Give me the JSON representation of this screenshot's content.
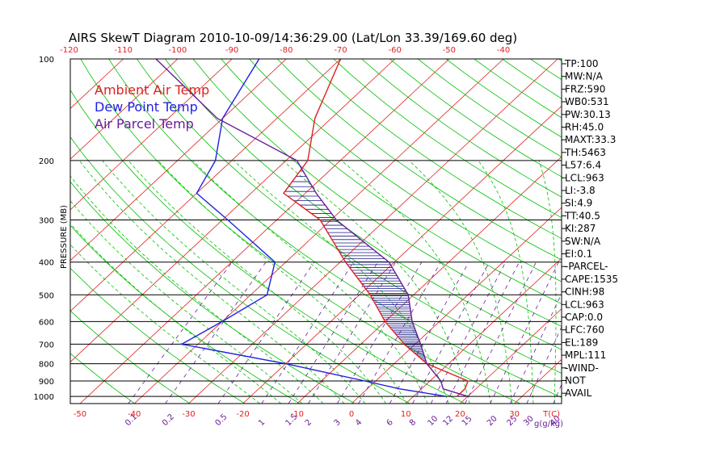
{
  "chart_data": {
    "type": "skewt",
    "title": "AIRS SkewT Diagram 2010-10-09/14:36:29.00 (Lat/Lon 33.39/169.60 deg)",
    "ylabel": "PRESSURE (MB)",
    "xlabel": "T(C)",
    "mixing_ratio_label": "g(g/kg)",
    "pressure_levels": [
      100,
      200,
      300,
      400,
      500,
      600,
      700,
      800,
      900,
      1000
    ],
    "pressure_range": [
      100,
      1050
    ],
    "top_temperature_ticks": [
      -120,
      -110,
      -100,
      -90,
      -80,
      -70,
      -60,
      -50,
      -40
    ],
    "bottom_temperature_ticks": [
      -50,
      -40,
      -30,
      -20,
      -10,
      0,
      10,
      20,
      30
    ],
    "mixing_ratio_labels": [
      "0.1",
      "0.2",
      "0.5",
      "1",
      "1.5",
      "2",
      "3",
      "4",
      "6",
      "8",
      "10",
      "12",
      "15",
      "20",
      "25",
      "30",
      "40"
    ],
    "mixing_ratio_values": [
      0.1,
      0.2,
      0.5,
      1,
      1.5,
      2,
      3,
      4,
      6,
      8,
      10,
      12,
      15,
      20,
      25,
      30,
      40
    ],
    "legend": [
      {
        "name": "Ambient Air Temp",
        "color": "#e02020"
      },
      {
        "name": "Dew Point Temp",
        "color": "#2020e0"
      },
      {
        "name": "Air Parcel Temp",
        "color": "#6a1a9a"
      }
    ],
    "series": [
      {
        "name": "Ambient Air Temp",
        "color": "#e02020",
        "points": [
          [
            100,
            -70
          ],
          [
            150,
            -63
          ],
          [
            200,
            -56
          ],
          [
            250,
            -54
          ],
          [
            300,
            -42
          ],
          [
            400,
            -29
          ],
          [
            500,
            -18
          ],
          [
            600,
            -10
          ],
          [
            700,
            -2
          ],
          [
            800,
            6
          ],
          [
            900,
            17
          ],
          [
            950,
            18
          ],
          [
            1000,
            18
          ]
        ]
      },
      {
        "name": "Dew Point Temp",
        "color": "#2020e0",
        "points": [
          [
            100,
            -85
          ],
          [
            150,
            -80
          ],
          [
            200,
            -73
          ],
          [
            250,
            -70
          ],
          [
            300,
            -59
          ],
          [
            400,
            -42
          ],
          [
            500,
            -37
          ],
          [
            600,
            -40
          ],
          [
            700,
            -43
          ],
          [
            800,
            -20
          ],
          [
            900,
            -2
          ],
          [
            950,
            6
          ],
          [
            1000,
            16
          ]
        ]
      },
      {
        "name": "Air Parcel Temp",
        "color": "#6a1a9a",
        "points": [
          [
            100,
            -104
          ],
          [
            150,
            -81
          ],
          [
            200,
            -58
          ],
          [
            250,
            -48
          ],
          [
            300,
            -39
          ],
          [
            400,
            -21
          ],
          [
            500,
            -11
          ],
          [
            600,
            -5
          ],
          [
            700,
            1
          ],
          [
            800,
            6
          ],
          [
            900,
            12
          ],
          [
            950,
            14
          ],
          [
            1000,
            20
          ]
        ]
      }
    ],
    "indices": [
      "TP:100",
      "MW:N/A",
      "FRZ:590",
      "WB0:531",
      "PW:30.13",
      "RH:45.0",
      "MAXT:33.3",
      "TH:5463",
      "L57:6.4",
      "LCL:963",
      "LI:-3.8",
      "SI:4.9",
      "TT:40.5",
      "KI:287",
      "SW:N/A",
      "EI:0.1",
      "-PARCEL-",
      "CAPE:1535",
      "CINH:98",
      "LCL:963",
      "CAP:0.0",
      "LFC:760",
      "EL:189",
      "MPL:111",
      "-WIND-",
      "NOT",
      "AVAIL"
    ]
  },
  "colors": {
    "isotherm": "#e02020",
    "dry_adiabat": "#00c000",
    "moist_adiabat": "#00c000",
    "mixing_ratio": "#6a1a9a",
    "isobar": "#000000",
    "top_tick": "#e02020",
    "bottom_tick": "#e02020",
    "mixing_tick": "#6a1a9a",
    "cape_hatch": "#1a1a8a"
  }
}
